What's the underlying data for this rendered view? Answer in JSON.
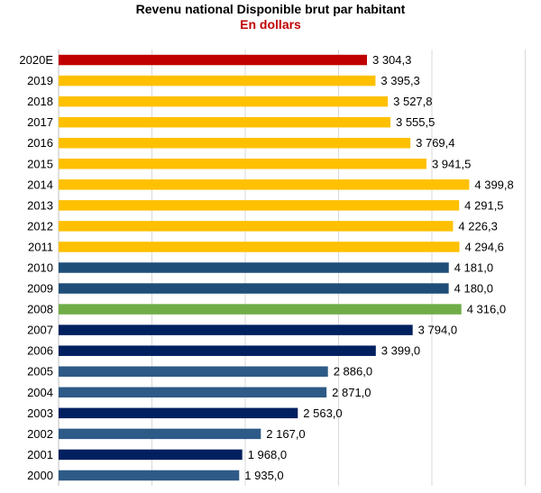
{
  "chart_data": {
    "type": "bar",
    "orientation": "horizontal",
    "title": "Revenu national Disponible brut par habitant",
    "subtitle": "En dollars",
    "categories": [
      "2020E",
      "2019",
      "2018",
      "2017",
      "2016",
      "2015",
      "2014",
      "2013",
      "2012",
      "2011",
      "2010",
      "2009",
      "2008",
      "2007",
      "2006",
      "2005",
      "2004",
      "2003",
      "2002",
      "2001",
      "2000"
    ],
    "values": [
      3304.3,
      3395.3,
      3527.8,
      3555.5,
      3769.4,
      3941.5,
      4399.8,
      4291.5,
      4226.3,
      4294.6,
      4181.0,
      4180.0,
      4316.0,
      3794.0,
      3399.0,
      2886.0,
      2871.0,
      2563.0,
      2167.0,
      1968.0,
      1935.0
    ],
    "value_labels": [
      "3 304,3",
      "3 395,3",
      "3 527,8",
      "3 555,5",
      "3 769,4",
      "3 941,5",
      "4 399,8",
      "4 291,5",
      "4 226,3",
      "4 294,6",
      "4 181,0",
      "4 180,0",
      "4 316,0",
      "3 794,0",
      "3 399,0",
      "2 886,0",
      "2 871,0",
      "2 563,0",
      "2 167,0",
      "1 968,0",
      "1 935,0"
    ],
    "colors": [
      "#c00000",
      "#ffc000",
      "#ffc000",
      "#ffc000",
      "#ffc000",
      "#ffc000",
      "#ffc000",
      "#ffc000",
      "#ffc000",
      "#ffc000",
      "#1f4e79",
      "#1f4e79",
      "#70ad47",
      "#002060",
      "#002060",
      "#2e5a87",
      "#2e5a87",
      "#002060",
      "#2e5a87",
      "#002060",
      "#2e5a87"
    ],
    "xlim": [
      0,
      5000
    ],
    "grid": true,
    "gridline_color": "#d9d9d9",
    "legend": "none"
  }
}
